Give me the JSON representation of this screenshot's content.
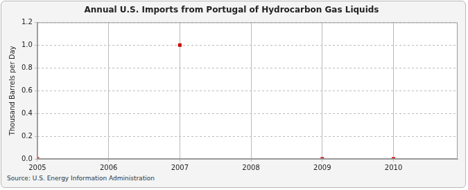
{
  "chart_data": {
    "type": "line",
    "title": "Annual U.S. Imports from Portugal of Hydrocarbon Gas Liquids",
    "y_label": "Thousand Barrels per Day",
    "source": "Source: U.S. Energy Information Administration",
    "x": [
      2005,
      2006,
      2007,
      2008,
      2009,
      2010
    ],
    "values": [
      0,
      null,
      1,
      null,
      0,
      0
    ],
    "color": "#cc0000",
    "marker": "square",
    "line_style": "solid",
    "xlim": [
      2005,
      2010.9
    ],
    "xticks": [
      2005,
      2006,
      2007,
      2008,
      2009,
      2010
    ],
    "ylim": [
      0,
      1.2
    ],
    "yticks": [
      {
        "value": 0,
        "label": "0.0"
      },
      0.2,
      0.4,
      0.6,
      0.8,
      {
        "value": 1,
        "label": "1.0"
      },
      1.2
    ],
    "grid": true
  }
}
